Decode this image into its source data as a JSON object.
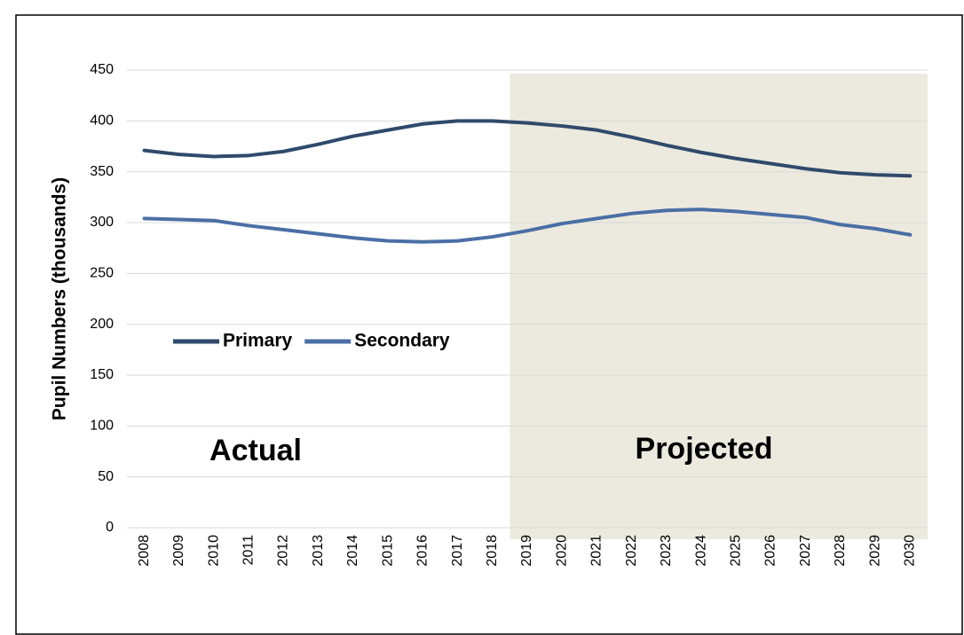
{
  "chart_data": {
    "type": "line",
    "y_label": "Pupil Numbers (thousands)",
    "categories": [
      "2008",
      "2009",
      "2010",
      "2011",
      "2012",
      "2013",
      "2014",
      "2015",
      "2016",
      "2017",
      "2018",
      "2019",
      "2020",
      "2021",
      "2022",
      "2023",
      "2024",
      "2025",
      "2026",
      "2027",
      "2028",
      "2029",
      "2030"
    ],
    "series": [
      {
        "name": "Primary",
        "color": "#2f4a6b",
        "values": [
          371,
          367,
          365,
          366,
          370,
          377,
          385,
          391,
          397,
          400,
          400,
          398,
          395,
          391,
          384,
          376,
          369,
          363,
          358,
          353,
          349,
          347,
          346
        ]
      },
      {
        "name": "Secondary",
        "color": "#4a6fa5",
        "values": [
          304,
          303,
          302,
          297,
          293,
          289,
          285,
          282,
          281,
          282,
          286,
          292,
          299,
          304,
          309,
          312,
          313,
          311,
          308,
          305,
          298,
          294,
          288
        ]
      }
    ],
    "ylim": [
      0,
      450
    ],
    "yticks": [
      0,
      50,
      100,
      150,
      200,
      250,
      300,
      350,
      400,
      450
    ],
    "grid": true,
    "shade_from": "2019",
    "shade_color": "#ddd8c5",
    "annotations": [
      "Actual",
      "Projected"
    ]
  }
}
